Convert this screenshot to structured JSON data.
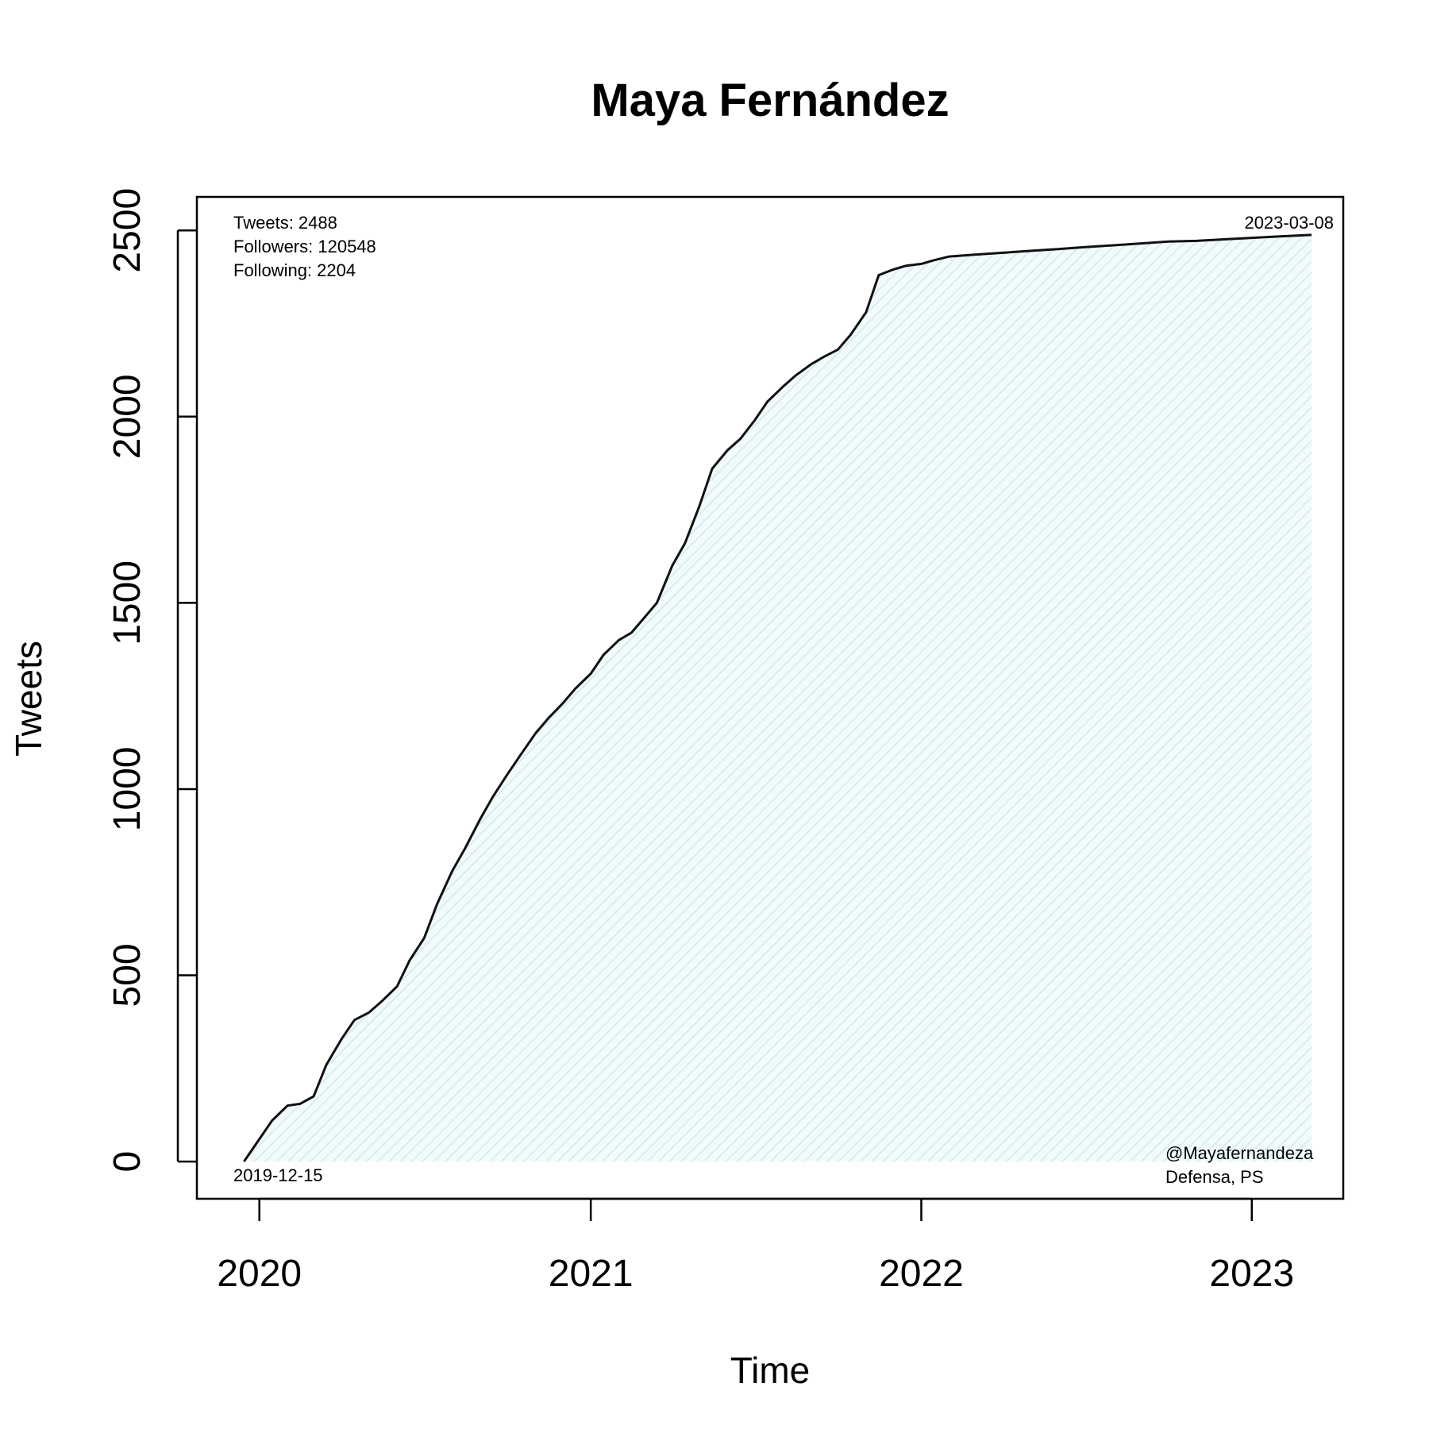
{
  "chart_data": {
    "type": "area",
    "title": "Maya Fernández",
    "xlabel": "Time",
    "ylabel": "Tweets",
    "x_ticks": [
      "2020",
      "2021",
      "2022",
      "2023"
    ],
    "y_ticks": [
      0,
      500,
      1000,
      1500,
      2000,
      2500
    ],
    "ylim": [
      -100,
      2590
    ],
    "xlim": [
      "2019-10-24",
      "2023-04-12"
    ],
    "grid": false,
    "fill_color": "#d6eef0",
    "line_color": "#111111",
    "annotations": {
      "stats": [
        "Tweets: 2488",
        "Followers: 120548",
        "Following: 2204"
      ],
      "start_date": "2019-12-15",
      "end_date": "2023-03-08",
      "handle": "@Mayafernandeza",
      "affiliation": "Defensa, PS"
    },
    "series": [
      {
        "x": [
          "2019-12-15",
          "2020-01-01",
          "2020-01-15",
          "2020-02-01",
          "2020-02-15",
          "2020-03-01",
          "2020-03-15",
          "2020-04-01",
          "2020-04-15",
          "2020-05-01",
          "2020-05-15",
          "2020-06-01",
          "2020-06-15",
          "2020-07-01",
          "2020-07-15",
          "2020-08-01",
          "2020-08-15",
          "2020-09-01",
          "2020-09-15",
          "2020-10-01",
          "2020-10-15",
          "2020-11-01",
          "2020-11-15",
          "2020-12-01",
          "2020-12-15",
          "2021-01-01",
          "2021-01-15",
          "2021-02-01",
          "2021-02-15",
          "2021-03-01",
          "2021-03-15",
          "2021-04-01",
          "2021-04-15",
          "2021-05-01",
          "2021-05-15",
          "2021-06-01",
          "2021-06-15",
          "2021-07-01",
          "2021-07-15",
          "2021-08-01",
          "2021-08-15",
          "2021-09-01",
          "2021-09-15",
          "2021-10-01",
          "2021-10-15",
          "2021-11-01",
          "2021-11-15",
          "2021-12-01",
          "2021-12-15",
          "2022-01-01",
          "2022-01-15",
          "2022-02-01",
          "2022-03-01",
          "2022-04-01",
          "2022-05-01",
          "2022-06-01",
          "2022-07-01",
          "2022-08-01",
          "2022-09-01",
          "2022-10-01",
          "2022-11-01",
          "2022-12-01",
          "2023-01-01",
          "2023-02-01",
          "2023-03-08"
        ],
        "values": [
          0,
          60,
          110,
          150,
          155,
          175,
          260,
          330,
          380,
          400,
          430,
          470,
          540,
          600,
          690,
          780,
          840,
          920,
          980,
          1040,
          1090,
          1150,
          1190,
          1230,
          1270,
          1310,
          1360,
          1400,
          1420,
          1460,
          1500,
          1600,
          1660,
          1760,
          1860,
          1910,
          1940,
          1990,
          2040,
          2080,
          2110,
          2140,
          2160,
          2180,
          2220,
          2280,
          2380,
          2395,
          2405,
          2410,
          2420,
          2430,
          2435,
          2440,
          2445,
          2450,
          2455,
          2460,
          2465,
          2470,
          2472,
          2476,
          2480,
          2484,
          2488
        ]
      }
    ]
  }
}
